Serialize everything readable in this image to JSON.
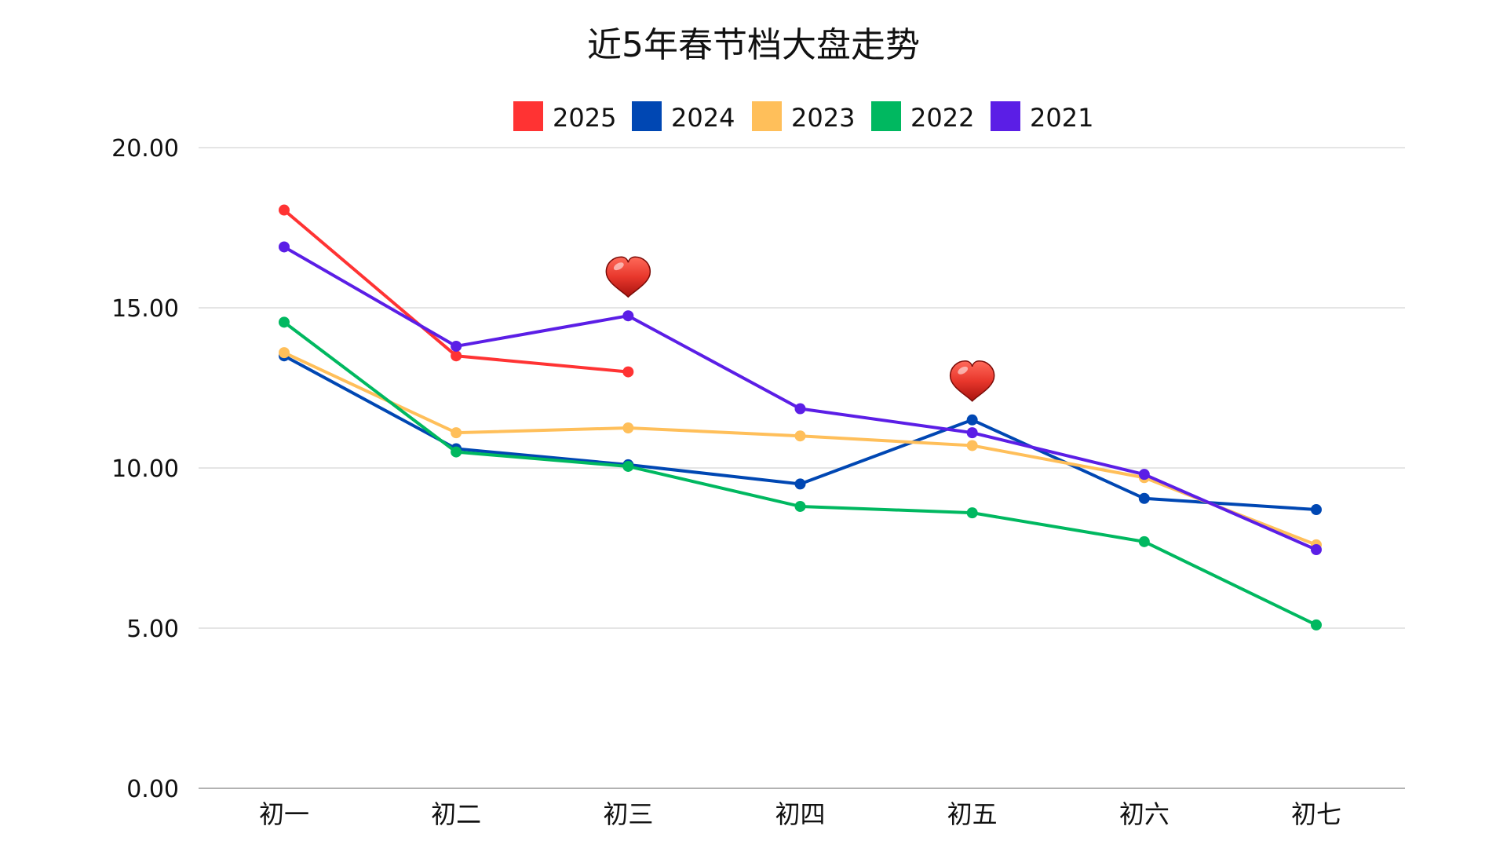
{
  "chart_data": {
    "type": "line",
    "title": "近5年春节档大盘走势",
    "xlabel": "",
    "ylabel": "",
    "categories": [
      "初一",
      "初二",
      "初三",
      "初四",
      "初五",
      "初六",
      "初七"
    ],
    "ylim": [
      0,
      20
    ],
    "yticks": [
      "0.00",
      "5.00",
      "10.00",
      "15.00",
      "20.00"
    ],
    "grid": true,
    "legend_position": "top-center",
    "series": [
      {
        "name": "2025",
        "color": "#ff3333",
        "values": [
          18.05,
          13.5,
          13.0,
          null,
          null,
          null,
          null
        ]
      },
      {
        "name": "2024",
        "color": "#0047b3",
        "values": [
          13.5,
          10.6,
          10.1,
          9.5,
          11.5,
          9.05,
          8.7
        ]
      },
      {
        "name": "2023",
        "color": "#ffbf5a",
        "values": [
          13.6,
          11.1,
          11.25,
          11.0,
          10.7,
          9.7,
          7.6
        ]
      },
      {
        "name": "2022",
        "color": "#00b860",
        "values": [
          14.55,
          10.5,
          10.05,
          8.8,
          8.6,
          7.7,
          5.1
        ]
      },
      {
        "name": "2021",
        "color": "#5b1ee6",
        "values": [
          16.9,
          13.8,
          14.75,
          11.85,
          11.1,
          9.8,
          7.45
        ]
      }
    ],
    "annotations": [
      {
        "icon": "heart-icon",
        "category_index": 2,
        "value": 14.75
      },
      {
        "icon": "heart-icon",
        "category_index": 4,
        "value": 11.5
      }
    ]
  }
}
